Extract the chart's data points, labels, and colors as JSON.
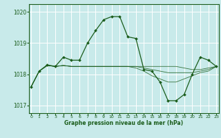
{
  "title": "Graphe pression niveau de la mer (hPa)",
  "bg_color": "#c8eaea",
  "grid_color": "#ffffff",
  "line_color": "#1a5c1a",
  "marker_color": "#1a5c1a",
  "ylim": [
    1016.75,
    1020.25
  ],
  "yticks": [
    1017,
    1018,
    1019,
    1020
  ],
  "xlim": [
    -0.3,
    23.3
  ],
  "xticks": [
    0,
    1,
    2,
    3,
    4,
    5,
    6,
    7,
    8,
    9,
    10,
    11,
    12,
    13,
    14,
    15,
    16,
    17,
    18,
    19,
    20,
    21,
    22,
    23
  ],
  "main_series": [
    1017.6,
    1018.1,
    1018.3,
    1018.25,
    1018.55,
    1018.45,
    1018.45,
    1019.0,
    1019.4,
    1019.75,
    1019.85,
    1019.85,
    1019.2,
    1019.15,
    1018.15,
    1018.1,
    1017.75,
    1017.15,
    1017.15,
    1017.35,
    1018.0,
    1018.55,
    1018.45,
    1018.25
  ],
  "ref_series": [
    [
      1017.6,
      1018.1,
      1018.28,
      1018.25,
      1018.28,
      1018.25,
      1018.25,
      1018.25,
      1018.25,
      1018.25,
      1018.25,
      1018.25,
      1018.25,
      1018.25,
      1018.25,
      1018.25,
      1018.25,
      1018.25,
      1018.25,
      1018.2,
      1018.15,
      1018.15,
      1018.2,
      1018.25
    ],
    [
      1017.6,
      1018.1,
      1018.28,
      1018.25,
      1018.28,
      1018.25,
      1018.25,
      1018.25,
      1018.25,
      1018.25,
      1018.25,
      1018.25,
      1018.25,
      1018.25,
      1018.2,
      1018.15,
      1018.1,
      1018.05,
      1018.05,
      1018.05,
      1018.05,
      1018.1,
      1018.15,
      1018.25
    ],
    [
      1017.6,
      1018.1,
      1018.28,
      1018.25,
      1018.28,
      1018.25,
      1018.25,
      1018.25,
      1018.25,
      1018.25,
      1018.25,
      1018.25,
      1018.25,
      1018.2,
      1018.1,
      1017.95,
      1017.85,
      1017.75,
      1017.75,
      1017.85,
      1017.95,
      1018.05,
      1018.1,
      1018.25
    ]
  ]
}
